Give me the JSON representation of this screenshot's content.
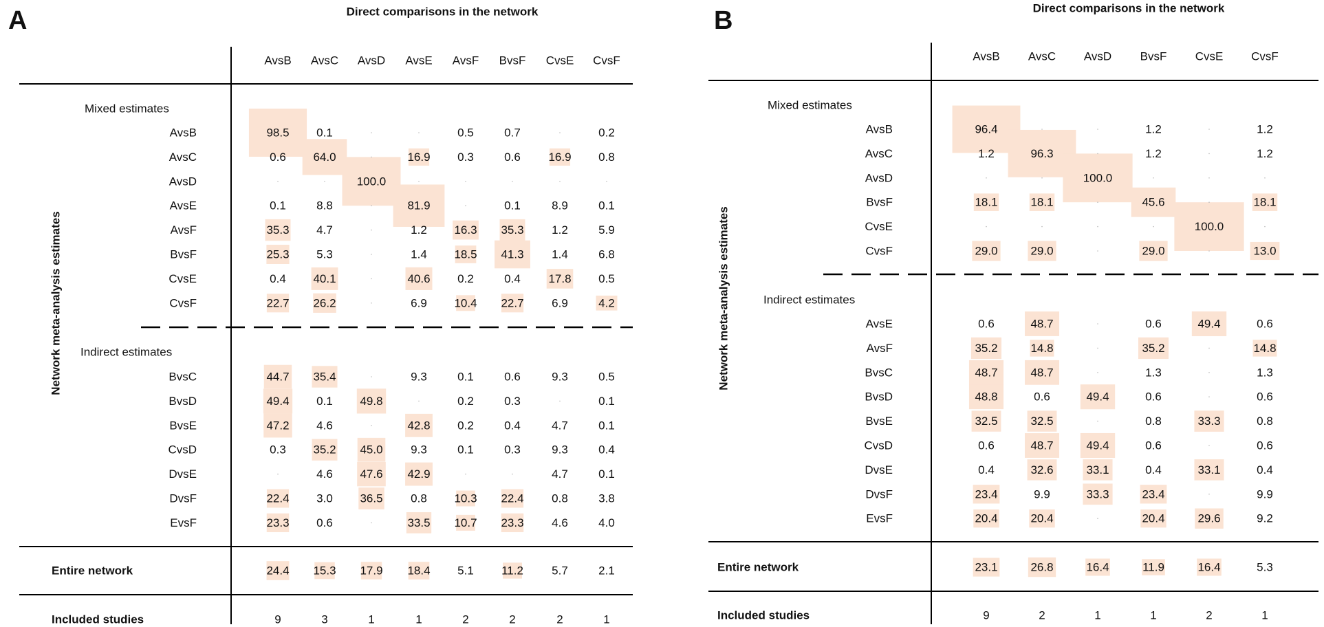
{
  "colors": {
    "shade": "#fbe3d3",
    "line": "#000000"
  },
  "chart_data": [
    {
      "type": "table",
      "panel": "A",
      "title": "Direct comparisons in the network",
      "ylabel": "Network meta-analysis estimates",
      "columns": [
        "AvsB",
        "AvsC",
        "AvsD",
        "AvsE",
        "AvsF",
        "BvsF",
        "CvsE",
        "CvsF"
      ],
      "sections": [
        {
          "label": "Mixed estimates",
          "rows": [
            {
              "label": "AvsB",
              "values": [
                98.5,
                0.1,
                null,
                null,
                0.5,
                0.7,
                null,
                0.2
              ]
            },
            {
              "label": "AvsC",
              "values": [
                0.6,
                64.0,
                null,
                16.9,
                0.3,
                0.6,
                16.9,
                0.8
              ]
            },
            {
              "label": "AvsD",
              "values": [
                null,
                null,
                100.0,
                null,
                null,
                null,
                null,
                null
              ]
            },
            {
              "label": "AvsE",
              "values": [
                0.1,
                8.8,
                null,
                81.9,
                null,
                0.1,
                8.9,
                0.1
              ]
            },
            {
              "label": "AvsF",
              "values": [
                35.3,
                4.7,
                null,
                1.2,
                16.3,
                35.3,
                1.2,
                5.9
              ]
            },
            {
              "label": "BvsF",
              "values": [
                25.3,
                5.3,
                null,
                1.4,
                18.5,
                41.3,
                1.4,
                6.8
              ]
            },
            {
              "label": "CvsE",
              "values": [
                0.4,
                40.1,
                null,
                40.6,
                0.2,
                0.4,
                17.8,
                0.5
              ]
            },
            {
              "label": "CvsF",
              "values": [
                22.7,
                26.2,
                null,
                6.9,
                10.4,
                22.7,
                6.9,
                4.2
              ]
            }
          ]
        },
        {
          "label": "Indirect estimates",
          "rows": [
            {
              "label": "BvsC",
              "values": [
                44.7,
                35.4,
                null,
                9.3,
                0.1,
                0.6,
                9.3,
                0.5
              ]
            },
            {
              "label": "BvsD",
              "values": [
                49.4,
                0.1,
                49.8,
                null,
                0.2,
                0.3,
                null,
                0.1
              ]
            },
            {
              "label": "BvsE",
              "values": [
                47.2,
                4.6,
                null,
                42.8,
                0.2,
                0.4,
                4.7,
                0.1
              ]
            },
            {
              "label": "CvsD",
              "values": [
                0.3,
                35.2,
                45.0,
                9.3,
                0.1,
                0.3,
                9.3,
                0.4
              ]
            },
            {
              "label": "DvsE",
              "values": [
                null,
                4.6,
                47.6,
                42.9,
                null,
                null,
                4.7,
                0.1
              ]
            },
            {
              "label": "DvsF",
              "values": [
                22.4,
                3.0,
                36.5,
                0.8,
                10.3,
                22.4,
                0.8,
                3.8
              ]
            },
            {
              "label": "EvsF",
              "values": [
                23.3,
                0.6,
                null,
                33.5,
                10.7,
                23.3,
                4.6,
                4.0
              ]
            }
          ]
        }
      ],
      "entire_network": {
        "label": "Entire network",
        "values": [
          24.4,
          15.3,
          17.9,
          18.4,
          5.1,
          11.2,
          5.7,
          2.1
        ]
      },
      "included_studies": {
        "label": "Included studies",
        "values": [
          9,
          3,
          1,
          1,
          2,
          2,
          2,
          1
        ]
      }
    },
    {
      "type": "table",
      "panel": "B",
      "title": "Direct comparisons in the network",
      "ylabel": "Network meta-analysis estimates",
      "columns": [
        "AvsB",
        "AvsC",
        "AvsD",
        "BvsF",
        "CvsE",
        "CvsF"
      ],
      "sections": [
        {
          "label": "Mixed estimates",
          "rows": [
            {
              "label": "AvsB",
              "values": [
                96.4,
                null,
                null,
                1.2,
                null,
                1.2
              ]
            },
            {
              "label": "AvsC",
              "values": [
                1.2,
                96.3,
                null,
                1.2,
                null,
                1.2
              ]
            },
            {
              "label": "AvsD",
              "values": [
                null,
                null,
                100.0,
                null,
                null,
                null
              ]
            },
            {
              "label": "BvsF",
              "values": [
                18.1,
                18.1,
                null,
                45.6,
                null,
                18.1
              ]
            },
            {
              "label": "CvsE",
              "values": [
                null,
                null,
                null,
                null,
                100.0,
                null
              ]
            },
            {
              "label": "CvsF",
              "values": [
                29.0,
                29.0,
                null,
                29.0,
                null,
                13.0
              ]
            }
          ]
        },
        {
          "label": "Indirect estimates",
          "rows": [
            {
              "label": "AvsE",
              "values": [
                0.6,
                48.7,
                null,
                0.6,
                49.4,
                0.6
              ]
            },
            {
              "label": "AvsF",
              "values": [
                35.2,
                14.8,
                null,
                35.2,
                null,
                14.8
              ]
            },
            {
              "label": "BvsC",
              "values": [
                48.7,
                48.7,
                null,
                1.3,
                null,
                1.3
              ]
            },
            {
              "label": "BvsD",
              "values": [
                48.8,
                0.6,
                49.4,
                0.6,
                null,
                0.6
              ]
            },
            {
              "label": "BvsE",
              "values": [
                32.5,
                32.5,
                null,
                0.8,
                33.3,
                0.8
              ]
            },
            {
              "label": "CvsD",
              "values": [
                0.6,
                48.7,
                49.4,
                0.6,
                null,
                0.6
              ]
            },
            {
              "label": "DvsE",
              "values": [
                0.4,
                32.6,
                33.1,
                0.4,
                33.1,
                0.4
              ]
            },
            {
              "label": "DvsF",
              "values": [
                23.4,
                9.9,
                33.3,
                23.4,
                null,
                9.9
              ]
            },
            {
              "label": "EvsF",
              "values": [
                20.4,
                20.4,
                null,
                20.4,
                29.6,
                9.2
              ]
            }
          ]
        }
      ],
      "entire_network": {
        "label": "Entire network",
        "values": [
          23.1,
          26.8,
          16.4,
          11.9,
          16.4,
          5.3
        ]
      },
      "included_studies": {
        "label": "Included studies",
        "values": [
          9,
          2,
          1,
          1,
          2,
          1
        ]
      }
    }
  ]
}
